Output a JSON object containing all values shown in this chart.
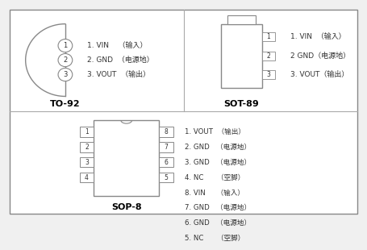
{
  "bg_color": "#f0f0f0",
  "line_color": "#888888",
  "text_color": "#333333",
  "title_color": "#000000",
  "divider_color": "#aaaaaa",
  "to92_label": "TO-92",
  "sot89_label": "SOT-89",
  "sop8_label": "SOP-8",
  "to92_pins": [
    "1",
    "2",
    "3"
  ],
  "to92_text": [
    "1. VIN    （输入）",
    "2. GND  （电源地）",
    "3. VOUT  （输出）"
  ],
  "sot89_text": [
    "1. VIN  （输入）",
    "2 GND（电源地）",
    "3. VOUT（输出）"
  ],
  "sop8_left_pins": [
    "1",
    "2",
    "3",
    "4"
  ],
  "sop8_right_pins": [
    "8",
    "7",
    "6",
    "5"
  ],
  "sop8_text": [
    "1. VOUT  （输出）",
    "2. GND   （电源地）",
    "3. GND   （电源地）",
    "4. NC      （空脚）",
    "5. NC      （空脚）",
    "6. GND   （电源地）",
    "7. GND   （电源地）",
    "8. VIN     （输入）"
  ]
}
